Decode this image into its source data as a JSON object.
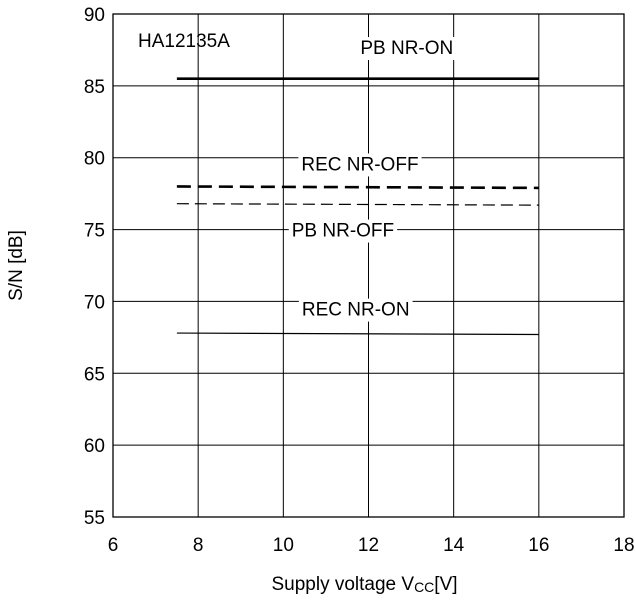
{
  "chart_data": {
    "type": "line",
    "title": "HA12135A",
    "xlabel": "Supply voltage V",
    "xlabel_sub": "CC",
    "xlabel_unit": "[V]",
    "ylabel": "S/N [dB]",
    "xlim": [
      6,
      18
    ],
    "ylim": [
      55,
      90
    ],
    "x_ticks": [
      6,
      8,
      10,
      12,
      14,
      16,
      18
    ],
    "y_ticks": [
      55,
      60,
      65,
      70,
      75,
      80,
      85,
      90
    ],
    "grid": true,
    "series": [
      {
        "name": "PB NR-ON",
        "style": "solid-thick",
        "x": [
          7.5,
          16
        ],
        "y": [
          85.5,
          85.5
        ],
        "label_x": 12.9,
        "label_y": 87.7
      },
      {
        "name": "REC NR-OFF",
        "style": "dashed-thick",
        "x": [
          7.5,
          16
        ],
        "y": [
          78.0,
          77.9
        ],
        "label_x": 11.8,
        "label_y": 79.6
      },
      {
        "name": "PB NR-OFF",
        "style": "dashed-thin",
        "x": [
          7.5,
          16
        ],
        "y": [
          76.8,
          76.7
        ],
        "label_x": 11.4,
        "label_y": 75.0
      },
      {
        "name": "REC NR-ON",
        "style": "solid-thin",
        "x": [
          7.5,
          16
        ],
        "y": [
          67.8,
          67.7
        ],
        "label_x": 11.7,
        "label_y": 69.5
      }
    ]
  }
}
